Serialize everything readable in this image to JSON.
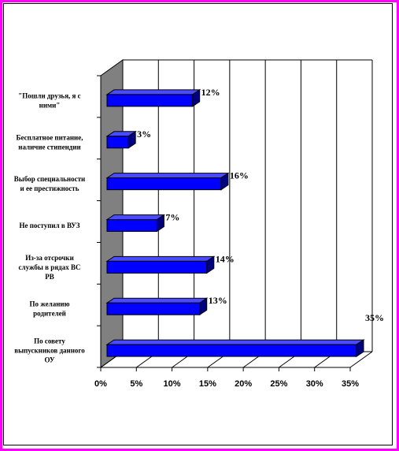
{
  "chart_data": {
    "type": "bar",
    "orientation": "horizontal",
    "three_d": true,
    "categories": [
      "\"Пошли друзья, я с ними\"",
      "Бесплатное питание, наличие стипендии",
      "Выбор специальности и ее престижность",
      "Не поступил в ВУЗ",
      "Из-за отсрочки службы в рядах ВС РВ",
      "По желанию родителей",
      "По совету выпускников данного ОУ"
    ],
    "values": [
      12,
      3,
      16,
      7,
      14,
      13,
      35
    ],
    "value_labels": [
      "12%",
      "3%",
      "16%",
      "7%",
      "14%",
      "13%",
      "35%"
    ],
    "xlim": [
      0,
      35
    ],
    "x_ticks": [
      "0%",
      "5%",
      "10%",
      "15%",
      "20%",
      "25%",
      "30%",
      "35%"
    ],
    "grid": true,
    "legend": "none",
    "colors": {
      "bar": "#0000ff",
      "bar_top": "#4a4aff",
      "bar_side": "#000080",
      "wall": "#808080",
      "frame": "#ff00ff"
    }
  }
}
